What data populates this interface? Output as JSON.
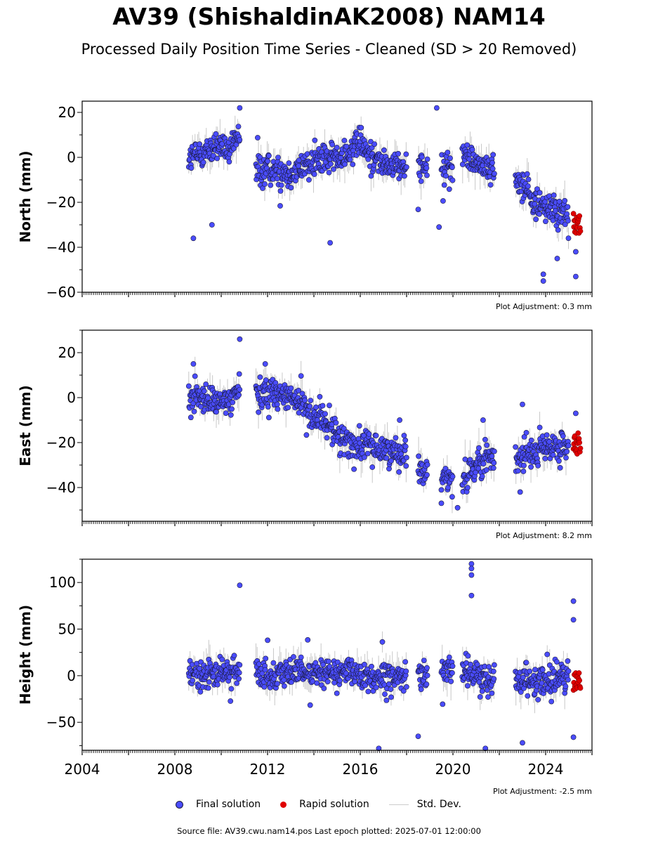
{
  "header": {
    "title": "AV39 (ShishaldinAK2008) NAM14",
    "subtitle": "Processed Daily Position Time Series - Cleaned (SD > 20 Removed)"
  },
  "legend": {
    "final": "Final solution",
    "rapid": "Rapid solution",
    "stddev": "Std. Dev."
  },
  "footer": {
    "source": "Source file: AV39.cwu.nam14.pos  Last epoch plotted: 2025-07-01 12:00:00"
  },
  "colors": {
    "final": "#4a4cff",
    "final_edge": "#1a1a3a",
    "rapid": "#e00000",
    "stddev": "#c8c8c8"
  },
  "chart_data": [
    {
      "type": "scatter",
      "ylabel": "North (mm)",
      "xlim": [
        2004.0,
        2026.0
      ],
      "ylim": [
        -60,
        25
      ],
      "yticks": [
        -60,
        -40,
        -20,
        0,
        20
      ],
      "adjustment": "Plot Adjustment: 0.3 mm",
      "segments": [
        {
          "x": [
            2008.6,
            2009.0,
            2009.5,
            2010.0,
            2010.4,
            2010.8
          ],
          "y": [
            0,
            1,
            3,
            5,
            2,
            10
          ]
        },
        {
          "x": [
            2011.5,
            2012.0,
            2012.5,
            2013.0,
            2013.5,
            2014.0,
            2014.5,
            2015.0,
            2015.5,
            2016.0,
            2016.5,
            2017.0,
            2017.5,
            2018.0
          ],
          "y": [
            -6,
            -5,
            -6,
            -7,
            -5,
            -2,
            -1,
            0,
            3,
            5,
            1,
            -3,
            -4,
            -3
          ]
        },
        {
          "x": [
            2018.5,
            2018.9
          ],
          "y": [
            -3,
            -4
          ]
        },
        {
          "x": [
            2019.5,
            2020.0
          ],
          "y": [
            -2,
            -6
          ]
        },
        {
          "x": [
            2020.4,
            2020.8,
            2021.2,
            2021.8
          ],
          "y": [
            2,
            -1,
            -3,
            -6
          ]
        },
        {
          "x": [
            2022.7,
            2023.0,
            2023.5,
            2024.0,
            2024.5,
            2025.0
          ],
          "y": [
            -10,
            -12,
            -20,
            -22,
            -24,
            -27
          ]
        }
      ],
      "rapid": {
        "x": [
          2025.2,
          2025.5
        ],
        "y": [
          -30,
          -29
        ]
      },
      "outliers": {
        "x": [
          2008.8,
          2009.6,
          2010.8,
          2014.7,
          2019.3,
          2019.4,
          2023.9,
          2023.9,
          2024.5,
          2025.3,
          2025.3
        ],
        "y": [
          -36,
          -30,
          22,
          -38,
          22,
          -31,
          -52,
          -55,
          -45,
          -42,
          -53
        ]
      }
    },
    {
      "type": "scatter",
      "ylabel": "East (mm)",
      "xlim": [
        2004.0,
        2026.0
      ],
      "ylim": [
        -55,
        30
      ],
      "yticks": [
        -40,
        -20,
        0,
        20
      ],
      "adjustment": "Plot Adjustment: 8.2 mm",
      "segments": [
        {
          "x": [
            2008.6,
            2009.0,
            2009.5,
            2010.0,
            2010.4,
            2010.8
          ],
          "y": [
            0,
            0,
            -1,
            -2,
            -1,
            6
          ]
        },
        {
          "x": [
            2011.5,
            2012.0,
            2012.5,
            2013.0,
            2013.5,
            2014.0,
            2014.5,
            2015.0,
            2015.5,
            2016.0,
            2016.5,
            2017.0,
            2017.5,
            2018.0
          ],
          "y": [
            2,
            3,
            2,
            0,
            -3,
            -8,
            -12,
            -16,
            -20,
            -22,
            -22,
            -23,
            -24,
            -25
          ]
        },
        {
          "x": [
            2018.5,
            2018.9
          ],
          "y": [
            -31,
            -33
          ]
        },
        {
          "x": [
            2019.5,
            2020.0
          ],
          "y": [
            -35,
            -37
          ]
        },
        {
          "x": [
            2020.4,
            2020.8,
            2021.2,
            2021.8
          ],
          "y": [
            -39,
            -30,
            -29,
            -27
          ]
        },
        {
          "x": [
            2022.7,
            2023.0,
            2023.5,
            2024.0,
            2024.5,
            2025.0
          ],
          "y": [
            -28,
            -26,
            -24,
            -22,
            -23,
            -22
          ]
        }
      ],
      "rapid": {
        "x": [
          2025.2,
          2025.5
        ],
        "y": [
          -22,
          -21
        ]
      },
      "outliers": {
        "x": [
          2008.8,
          2010.8,
          2011.9,
          2017.7,
          2019.5,
          2020.2,
          2021.3,
          2022.9,
          2023.0,
          2025.3
        ],
        "y": [
          15,
          26,
          15,
          -10,
          -47,
          -49,
          -10,
          -42,
          -3,
          -7
        ]
      }
    },
    {
      "type": "scatter",
      "ylabel": "Height (mm)",
      "xlim": [
        2004.0,
        2026.0
      ],
      "ylim": [
        -80,
        125
      ],
      "yticks": [
        -50,
        0,
        50,
        100
      ],
      "adjustment": "Plot Adjustment: -2.5 mm",
      "xticks": [
        "2004",
        "2008",
        "2012",
        "2016",
        "2020",
        "2024"
      ],
      "segments": [
        {
          "x": [
            2008.6,
            2009.0,
            2009.5,
            2010.0,
            2010.4,
            2010.8
          ],
          "y": [
            0,
            2,
            4,
            3,
            2,
            3
          ]
        },
        {
          "x": [
            2011.5,
            2012.0,
            2012.5,
            2013.0,
            2013.5,
            2014.0,
            2014.5,
            2015.0,
            2015.5,
            2016.0,
            2016.5,
            2017.0,
            2017.5,
            2018.0
          ],
          "y": [
            1,
            2,
            4,
            5,
            3,
            4,
            6,
            3,
            2,
            1,
            -2,
            -3,
            0,
            1
          ]
        },
        {
          "x": [
            2018.5,
            2018.9
          ],
          "y": [
            -2,
            0
          ]
        },
        {
          "x": [
            2019.5,
            2020.0
          ],
          "y": [
            4,
            8
          ]
        },
        {
          "x": [
            2020.4,
            2020.8,
            2021.2,
            2021.8
          ],
          "y": [
            5,
            2,
            -3,
            -2
          ]
        },
        {
          "x": [
            2022.7,
            2023.0,
            2023.5,
            2024.0,
            2024.5,
            2025.0
          ],
          "y": [
            0,
            -2,
            -5,
            -6,
            -4,
            -2
          ]
        }
      ],
      "rapid": {
        "x": [
          2025.2,
          2025.5
        ],
        "y": [
          -8,
          -10
        ]
      },
      "outliers": {
        "x": [
          2010.8,
          2020.8,
          2020.8,
          2020.8,
          2020.8,
          2025.2,
          2025.2,
          2016.8,
          2021.4,
          2023.0,
          2018.5,
          2025.2
        ],
        "y": [
          97,
          120,
          115,
          108,
          86,
          80,
          60,
          -78,
          -78,
          -72,
          -65,
          -66
        ]
      }
    }
  ]
}
